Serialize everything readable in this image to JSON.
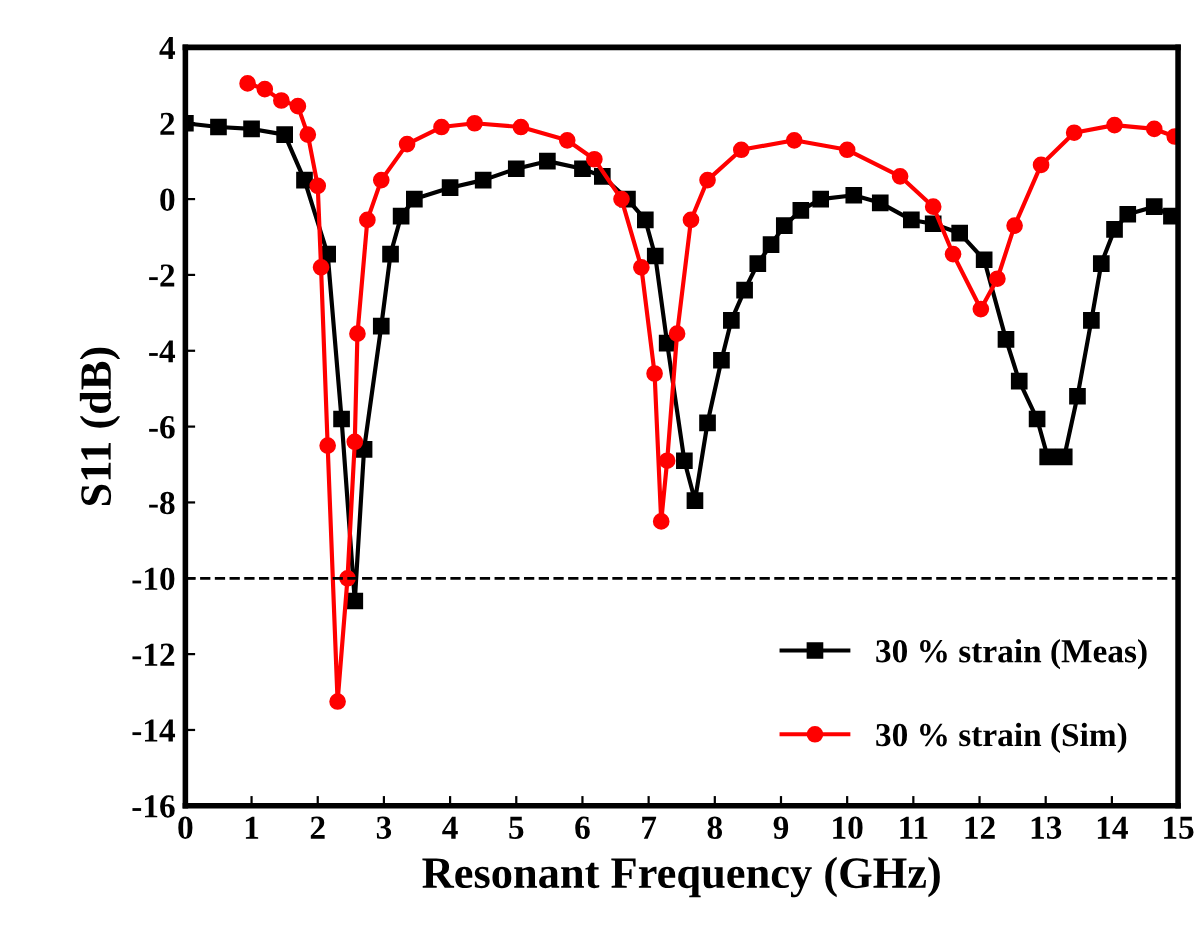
{
  "chart_data": {
    "type": "line",
    "xlabel": "Resonant Frequency (GHz)",
    "ylabel": "S11 (dB)",
    "xlim": [
      0,
      15
    ],
    "ylim": [
      -16,
      4
    ],
    "xticks": [
      0,
      1,
      2,
      3,
      4,
      5,
      6,
      7,
      8,
      9,
      10,
      11,
      12,
      13,
      14,
      15
    ],
    "yticks": [
      -16,
      -14,
      -12,
      -10,
      -8,
      -6,
      -4,
      -2,
      0,
      2,
      4
    ],
    "grid": false,
    "legend": "bottom right",
    "ref_lines": [
      {
        "axis": "y",
        "value": -10,
        "label": null,
        "color": "#000000",
        "line_style": "dashed"
      }
    ],
    "series": [
      {
        "name": "30 % strain (Meas)",
        "color": "#000000",
        "marker": "square",
        "x": [
          0,
          0.5,
          1,
          1.5,
          1.8,
          2.15,
          2.36,
          2.56,
          2.7,
          2.96,
          3.1,
          3.26,
          3.46,
          4,
          4.5,
          5,
          5.47,
          6,
          6.3,
          6.68,
          6.95,
          7.1,
          7.28,
          7.54,
          7.7,
          7.89,
          8.1,
          8.25,
          8.45,
          8.65,
          8.85,
          9.05,
          9.3,
          9.6,
          10.1,
          10.5,
          10.97,
          11.3,
          11.7,
          12.07,
          12.4,
          12.6,
          12.87,
          13.03,
          13.28,
          13.48,
          13.69,
          13.84,
          14.04,
          14.24,
          14.64,
          14.9
        ],
        "values": [
          2.0,
          1.9,
          1.85,
          1.7,
          0.5,
          -1.45,
          -5.8,
          -10.6,
          -6.6,
          -3.35,
          -1.45,
          -0.45,
          0,
          0.3,
          0.5,
          0.8,
          1.0,
          0.8,
          0.6,
          0,
          -0.55,
          -1.5,
          -3.8,
          -6.9,
          -7.95,
          -5.9,
          -4.25,
          -3.2,
          -2.4,
          -1.7,
          -1.2,
          -0.7,
          -0.3,
          0,
          0.1,
          -0.1,
          -0.55,
          -0.65,
          -0.9,
          -1.6,
          -3.7,
          -4.8,
          -5.8,
          -6.8,
          -6.8,
          -5.2,
          -3.2,
          -1.7,
          -0.8,
          -0.4,
          -0.2,
          -0.45
        ]
      },
      {
        "name": "30 % strain (Sim)",
        "color": "#ff0000",
        "marker": "circle",
        "x": [
          0.94,
          1.2,
          1.45,
          1.7,
          1.85,
          2.0,
          2.05,
          2.15,
          2.3,
          2.45,
          2.56,
          2.6,
          2.75,
          2.96,
          3.35,
          3.87,
          4.37,
          5.07,
          5.77,
          6.18,
          6.59,
          6.89,
          7.09,
          7.19,
          7.28,
          7.43,
          7.64,
          7.89,
          8.4,
          9.2,
          10.0,
          10.8,
          11.3,
          11.6,
          12.02,
          12.27,
          12.53,
          12.93,
          13.43,
          14.04,
          14.64,
          14.95
        ],
        "values": [
          3.05,
          2.9,
          2.6,
          2.45,
          1.7,
          0.35,
          -1.8,
          -6.5,
          -13.25,
          -10,
          -6.4,
          -3.55,
          -0.55,
          0.5,
          1.45,
          1.9,
          2.0,
          1.9,
          1.55,
          1.05,
          0,
          -1.8,
          -4.6,
          -8.5,
          -6.9,
          -3.55,
          -0.55,
          0.5,
          1.3,
          1.55,
          1.3,
          0.6,
          -0.2,
          -1.45,
          -2.9,
          -2.1,
          -0.7,
          0.9,
          1.75,
          1.95,
          1.85,
          1.65
        ]
      }
    ]
  }
}
